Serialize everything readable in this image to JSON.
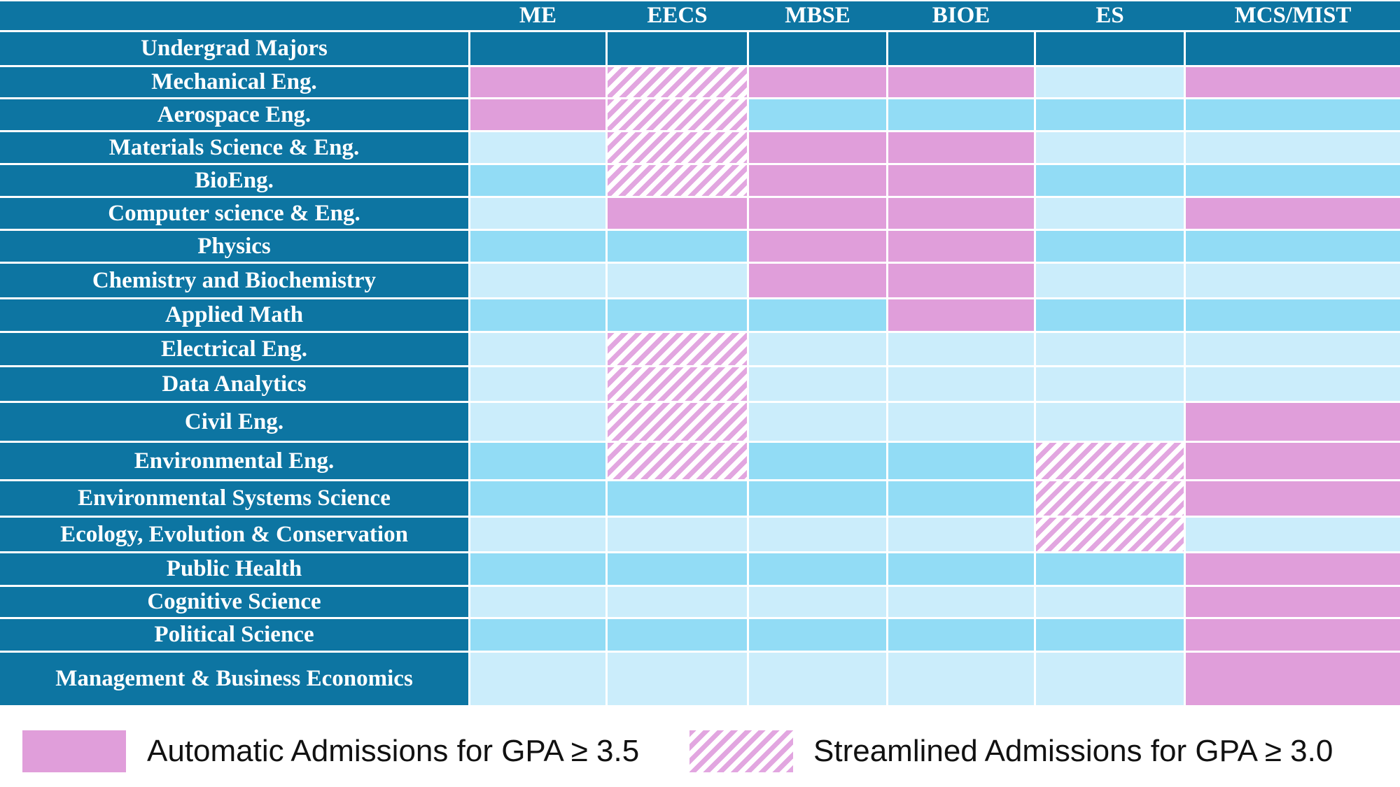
{
  "columns": [
    "ME",
    "EECS",
    "MBSE",
    "BIOE",
    "ES",
    "MCS/MIST"
  ],
  "corner_label": "",
  "rows": [
    {
      "label": "Undergrad Majors",
      "cells": [
        "dark",
        "dark",
        "dark",
        "dark",
        "dark",
        "dark"
      ]
    },
    {
      "label": "Mechanical Eng.",
      "cells": [
        "auto",
        "stream",
        "auto",
        "auto",
        "pale",
        "auto"
      ]
    },
    {
      "label": "Aerospace Eng.",
      "cells": [
        "auto",
        "stream",
        "med",
        "med",
        "med",
        "med"
      ]
    },
    {
      "label": "Materials Science & Eng.",
      "cells": [
        "pale",
        "stream",
        "auto",
        "auto",
        "pale",
        "pale"
      ]
    },
    {
      "label": "BioEng.",
      "cells": [
        "med",
        "stream",
        "auto",
        "auto",
        "med",
        "med"
      ]
    },
    {
      "label": "Computer science & Eng.",
      "cells": [
        "pale",
        "auto",
        "auto",
        "auto",
        "pale",
        "auto"
      ]
    },
    {
      "label": "Physics",
      "cells": [
        "med",
        "med",
        "auto",
        "auto",
        "med",
        "med"
      ]
    },
    {
      "label": "Chemistry and Biochemistry",
      "cells": [
        "pale",
        "pale",
        "auto",
        "auto",
        "pale",
        "pale"
      ]
    },
    {
      "label": "Applied Math",
      "cells": [
        "med",
        "med",
        "med",
        "auto",
        "med",
        "med"
      ]
    },
    {
      "label": "Electrical Eng.",
      "cells": [
        "pale",
        "stream",
        "pale",
        "pale",
        "pale",
        "pale"
      ]
    },
    {
      "label": "Data Analytics",
      "cells": [
        "pale",
        "stream",
        "pale",
        "pale",
        "pale",
        "pale"
      ]
    },
    {
      "label": "Civil Eng.",
      "cells": [
        "pale",
        "stream",
        "pale",
        "pale",
        "pale",
        "auto"
      ]
    },
    {
      "label": "Environmental Eng.",
      "cells": [
        "med",
        "stream",
        "med",
        "med",
        "stream",
        "auto"
      ]
    },
    {
      "label": "Environmental Systems Science",
      "cells": [
        "med",
        "med",
        "med",
        "med",
        "stream",
        "auto"
      ]
    },
    {
      "label": "Ecology, Evolution & Conservation",
      "cells": [
        "pale",
        "pale",
        "pale",
        "pale",
        "stream",
        "pale"
      ]
    },
    {
      "label": "Public Health",
      "cells": [
        "med",
        "med",
        "med",
        "med",
        "med",
        "auto"
      ]
    },
    {
      "label": "Cognitive Science",
      "cells": [
        "pale",
        "pale",
        "pale",
        "pale",
        "pale",
        "auto"
      ]
    },
    {
      "label": "Political Science",
      "cells": [
        "med",
        "med",
        "med",
        "med",
        "med",
        "auto"
      ]
    },
    {
      "label": "Management & Business Economics",
      "cells": [
        "pale",
        "pale",
        "pale",
        "pale",
        "pale",
        "auto"
      ]
    }
  ],
  "legend": {
    "automatic_label": "Automatic Admissions for GPA ≥ 3.5",
    "streamlined_label": "Streamlined Admissions for GPA ≥ 3.0"
  },
  "colors": {
    "teal": "#0D75A2",
    "pink": "#E09EDA",
    "medium": "#92DCF5",
    "pale": "#CBEDFB",
    "hatch": "#E2A6E0"
  },
  "chart_data": {
    "type": "heatmap",
    "title": "Undergrad Majors vs Graduate Programs admissions matrix",
    "columns": [
      "ME",
      "EECS",
      "MBSE",
      "BIOE",
      "ES",
      "MCS/MIST"
    ],
    "rows": [
      "Mechanical Eng.",
      "Aerospace Eng.",
      "Materials Science & Eng.",
      "BioEng.",
      "Computer science & Eng.",
      "Physics",
      "Chemistry and Biochemistry",
      "Applied Math",
      "Electrical Eng.",
      "Data Analytics",
      "Civil Eng.",
      "Environmental Eng.",
      "Environmental Systems Science",
      "Ecology, Evolution & Conservation",
      "Public Health",
      "Cognitive Science",
      "Political Science",
      "Management & Business Economics"
    ],
    "values": [
      [
        "automatic",
        "streamlined",
        "automatic",
        "automatic",
        "none",
        "automatic"
      ],
      [
        "automatic",
        "streamlined",
        "none",
        "none",
        "none",
        "none"
      ],
      [
        "none",
        "streamlined",
        "automatic",
        "automatic",
        "none",
        "none"
      ],
      [
        "none",
        "streamlined",
        "automatic",
        "automatic",
        "none",
        "none"
      ],
      [
        "none",
        "automatic",
        "automatic",
        "automatic",
        "none",
        "automatic"
      ],
      [
        "none",
        "none",
        "automatic",
        "automatic",
        "none",
        "none"
      ],
      [
        "none",
        "none",
        "automatic",
        "automatic",
        "none",
        "none"
      ],
      [
        "none",
        "none",
        "none",
        "automatic",
        "none",
        "none"
      ],
      [
        "none",
        "streamlined",
        "none",
        "none",
        "none",
        "none"
      ],
      [
        "none",
        "streamlined",
        "none",
        "none",
        "none",
        "none"
      ],
      [
        "none",
        "streamlined",
        "none",
        "none",
        "none",
        "automatic"
      ],
      [
        "none",
        "streamlined",
        "none",
        "none",
        "streamlined",
        "automatic"
      ],
      [
        "none",
        "none",
        "none",
        "none",
        "streamlined",
        "automatic"
      ],
      [
        "none",
        "none",
        "none",
        "none",
        "streamlined",
        "none"
      ],
      [
        "none",
        "none",
        "none",
        "none",
        "none",
        "automatic"
      ],
      [
        "none",
        "none",
        "none",
        "none",
        "none",
        "automatic"
      ],
      [
        "none",
        "none",
        "none",
        "none",
        "none",
        "automatic"
      ],
      [
        "none",
        "none",
        "none",
        "none",
        "none",
        "automatic"
      ]
    ],
    "legend_entries": [
      "Automatic Admissions for GPA ≥ 3.5",
      "Streamlined Admissions for GPA ≥ 3.0"
    ],
    "layout": {
      "legend_position": "bottom",
      "grid": "white 3px separators",
      "note": "cells with value none alternate medium/pale blue as row striping"
    }
  }
}
